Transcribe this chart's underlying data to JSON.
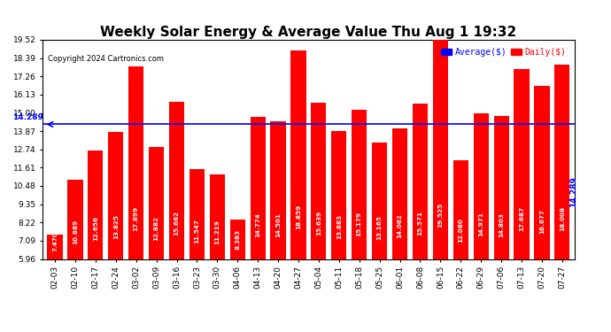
{
  "title": "Weekly Solar Energy & Average Value Thu Aug 1 19:32",
  "copyright": "Copyright 2024 Cartronics.com",
  "categories": [
    "02-03",
    "02-10",
    "02-17",
    "02-24",
    "03-02",
    "03-09",
    "03-16",
    "03-23",
    "03-30",
    "04-06",
    "04-13",
    "04-20",
    "04-27",
    "05-04",
    "05-11",
    "05-18",
    "05-25",
    "06-01",
    "06-08",
    "06-15",
    "06-22",
    "06-29",
    "07-06",
    "07-13",
    "07-20",
    "07-27"
  ],
  "values": [
    7.47,
    10.889,
    12.656,
    13.825,
    17.899,
    12.882,
    15.662,
    11.547,
    11.219,
    8.383,
    14.774,
    14.501,
    18.859,
    15.639,
    13.883,
    15.179,
    13.165,
    14.062,
    15.571,
    19.525,
    12.08,
    14.971,
    14.803,
    17.687,
    16.677,
    18.008
  ],
  "average_value": 14.289,
  "bar_color": "#ff0000",
  "average_color": "#0000ff",
  "daily_color": "#ff0000",
  "background_color": "#ffffff",
  "grid_color": "#cccccc",
  "ylim_min": 5.96,
  "ylim_max": 19.52,
  "yticks": [
    5.96,
    7.09,
    8.22,
    9.35,
    10.48,
    11.61,
    12.74,
    13.87,
    15.0,
    16.13,
    17.26,
    18.39,
    19.52
  ],
  "title_fontsize": 11,
  "label_fontsize": 6.5,
  "tick_fontsize": 6.5,
  "bar_label_fontsize": 5.2,
  "average_label": "Average($)",
  "daily_label": "Daily($)"
}
